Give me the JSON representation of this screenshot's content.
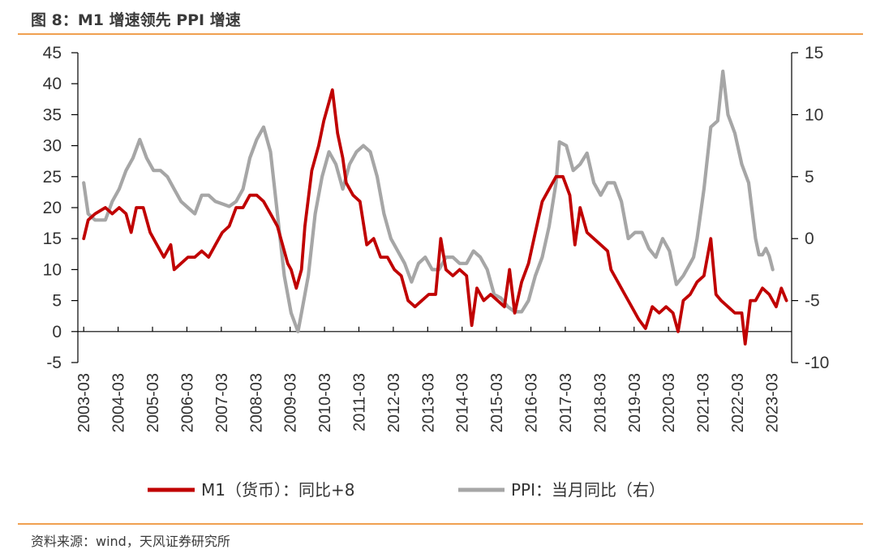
{
  "title": "图 8：M1 增速领先 PPI 增速",
  "source": "资料来源：wind，天风证券研究所",
  "colors": {
    "m1": "#c00000",
    "ppi": "#a6a6a6",
    "rule": "#f0a050",
    "axis": "#000000"
  },
  "chart_data": {
    "type": "line",
    "title": "M1 增速领先 PPI 增速",
    "x_tick_labels": [
      "2003-03",
      "2004-03",
      "2005-03",
      "2006-03",
      "2007-03",
      "2008-03",
      "2009-03",
      "2010-03",
      "2011-03",
      "2012-03",
      "2013-03",
      "2014-03",
      "2015-03",
      "2016-03",
      "2017-03",
      "2018-03",
      "2019-03",
      "2020-03",
      "2021-03",
      "2022-03",
      "2023-03"
    ],
    "y_left": {
      "min": -5,
      "max": 45,
      "ticks": [
        45,
        40,
        35,
        30,
        25,
        20,
        15,
        10,
        5,
        0,
        -5
      ]
    },
    "y_right": {
      "min": -10,
      "max": 15,
      "ticks": [
        15,
        10,
        5,
        0,
        -5,
        -10
      ]
    },
    "legend": [
      "M1（货币）：同比+8",
      "PPI：当月同比（右）"
    ],
    "legend_position": "bottom",
    "series": [
      {
        "name": "M1（货币）：同比+8",
        "axis": "left",
        "points": [
          [
            2003.17,
            15
          ],
          [
            2003.3,
            18
          ],
          [
            2003.5,
            19
          ],
          [
            2003.8,
            20
          ],
          [
            2004.0,
            19
          ],
          [
            2004.2,
            20
          ],
          [
            2004.4,
            19
          ],
          [
            2004.55,
            16
          ],
          [
            2004.7,
            20
          ],
          [
            2004.9,
            20
          ],
          [
            2005.1,
            16
          ],
          [
            2005.3,
            14
          ],
          [
            2005.5,
            12
          ],
          [
            2005.7,
            14
          ],
          [
            2005.8,
            10
          ],
          [
            2006.0,
            11
          ],
          [
            2006.2,
            12
          ],
          [
            2006.4,
            12
          ],
          [
            2006.6,
            13
          ],
          [
            2006.8,
            12
          ],
          [
            2007.0,
            14
          ],
          [
            2007.2,
            16
          ],
          [
            2007.4,
            17
          ],
          [
            2007.6,
            20
          ],
          [
            2007.8,
            20
          ],
          [
            2008.0,
            22
          ],
          [
            2008.2,
            22
          ],
          [
            2008.4,
            21
          ],
          [
            2008.6,
            19
          ],
          [
            2008.8,
            17
          ],
          [
            2009.0,
            13
          ],
          [
            2009.1,
            11
          ],
          [
            2009.2,
            10
          ],
          [
            2009.35,
            7
          ],
          [
            2009.5,
            10
          ],
          [
            2009.6,
            17
          ],
          [
            2009.8,
            26
          ],
          [
            2010.0,
            30
          ],
          [
            2010.15,
            34
          ],
          [
            2010.3,
            37
          ],
          [
            2010.4,
            39
          ],
          [
            2010.55,
            32
          ],
          [
            2010.7,
            28
          ],
          [
            2010.8,
            24
          ],
          [
            2011.0,
            22
          ],
          [
            2011.2,
            21
          ],
          [
            2011.4,
            14
          ],
          [
            2011.6,
            15
          ],
          [
            2011.8,
            12
          ],
          [
            2012.0,
            12
          ],
          [
            2012.2,
            10
          ],
          [
            2012.4,
            9
          ],
          [
            2012.6,
            5
          ],
          [
            2012.8,
            4
          ],
          [
            2013.0,
            5
          ],
          [
            2013.2,
            6
          ],
          [
            2013.4,
            6
          ],
          [
            2013.55,
            15
          ],
          [
            2013.7,
            10
          ],
          [
            2013.9,
            9
          ],
          [
            2014.1,
            10
          ],
          [
            2014.3,
            9
          ],
          [
            2014.45,
            1
          ],
          [
            2014.6,
            7
          ],
          [
            2014.8,
            5
          ],
          [
            2015.0,
            6
          ],
          [
            2015.2,
            5
          ],
          [
            2015.4,
            4
          ],
          [
            2015.55,
            10
          ],
          [
            2015.7,
            3
          ],
          [
            2015.9,
            8
          ],
          [
            2016.1,
            11
          ],
          [
            2016.3,
            16
          ],
          [
            2016.5,
            21
          ],
          [
            2016.7,
            23
          ],
          [
            2016.9,
            25
          ],
          [
            2017.1,
            25
          ],
          [
            2017.3,
            22
          ],
          [
            2017.45,
            14
          ],
          [
            2017.6,
            20
          ],
          [
            2017.8,
            16
          ],
          [
            2018.0,
            15
          ],
          [
            2018.2,
            14
          ],
          [
            2018.4,
            13
          ],
          [
            2018.5,
            10
          ],
          [
            2018.7,
            8
          ],
          [
            2018.9,
            6
          ],
          [
            2019.1,
            4
          ],
          [
            2019.3,
            2
          ],
          [
            2019.5,
            0.5
          ],
          [
            2019.7,
            4
          ],
          [
            2019.9,
            3
          ],
          [
            2020.1,
            4
          ],
          [
            2020.3,
            3
          ],
          [
            2020.45,
            0
          ],
          [
            2020.6,
            5
          ],
          [
            2020.8,
            6
          ],
          [
            2021.0,
            8
          ],
          [
            2021.2,
            9
          ],
          [
            2021.4,
            15
          ],
          [
            2021.55,
            6
          ],
          [
            2021.7,
            5
          ],
          [
            2021.9,
            4
          ],
          [
            2022.1,
            3
          ],
          [
            2022.3,
            3
          ],
          [
            2022.4,
            -2
          ],
          [
            2022.55,
            5
          ],
          [
            2022.7,
            5
          ],
          [
            2022.9,
            7
          ],
          [
            2023.1,
            6
          ],
          [
            2023.3,
            4
          ],
          [
            2023.45,
            7
          ],
          [
            2023.6,
            5
          ]
        ]
      },
      {
        "name": "PPI：当月同比（右）",
        "axis": "right",
        "points": [
          [
            2003.17,
            4.5
          ],
          [
            2003.3,
            2
          ],
          [
            2003.5,
            1.5
          ],
          [
            2003.8,
            1.5
          ],
          [
            2004.0,
            3
          ],
          [
            2004.2,
            4
          ],
          [
            2004.4,
            5.5
          ],
          [
            2004.6,
            6.5
          ],
          [
            2004.8,
            8
          ],
          [
            2005.0,
            6.5
          ],
          [
            2005.2,
            5.5
          ],
          [
            2005.4,
            5.5
          ],
          [
            2005.6,
            5
          ],
          [
            2005.8,
            4
          ],
          [
            2006.0,
            3
          ],
          [
            2006.2,
            2.5
          ],
          [
            2006.4,
            2
          ],
          [
            2006.6,
            3.5
          ],
          [
            2006.8,
            3.5
          ],
          [
            2007.0,
            3
          ],
          [
            2007.2,
            2.8
          ],
          [
            2007.4,
            2.6
          ],
          [
            2007.6,
            3
          ],
          [
            2007.8,
            4
          ],
          [
            2008.0,
            6.5
          ],
          [
            2008.2,
            8
          ],
          [
            2008.4,
            9
          ],
          [
            2008.6,
            7
          ],
          [
            2008.8,
            2
          ],
          [
            2009.0,
            -3
          ],
          [
            2009.2,
            -6
          ],
          [
            2009.4,
            -7.5
          ],
          [
            2009.5,
            -6
          ],
          [
            2009.7,
            -3
          ],
          [
            2009.9,
            2
          ],
          [
            2010.1,
            5
          ],
          [
            2010.3,
            7
          ],
          [
            2010.5,
            6
          ],
          [
            2010.7,
            4
          ],
          [
            2010.9,
            6
          ],
          [
            2011.1,
            7
          ],
          [
            2011.3,
            7.5
          ],
          [
            2011.5,
            7
          ],
          [
            2011.7,
            5
          ],
          [
            2011.9,
            2
          ],
          [
            2012.1,
            0
          ],
          [
            2012.3,
            -1
          ],
          [
            2012.5,
            -2
          ],
          [
            2012.7,
            -3.5
          ],
          [
            2012.9,
            -2
          ],
          [
            2013.1,
            -1.5
          ],
          [
            2013.3,
            -2.5
          ],
          [
            2013.5,
            -2.5
          ],
          [
            2013.7,
            -1.5
          ],
          [
            2013.9,
            -1.5
          ],
          [
            2014.1,
            -2
          ],
          [
            2014.3,
            -2
          ],
          [
            2014.5,
            -1
          ],
          [
            2014.7,
            -1.5
          ],
          [
            2014.9,
            -2.5
          ],
          [
            2015.1,
            -4.5
          ],
          [
            2015.3,
            -4.8
          ],
          [
            2015.5,
            -5.5
          ],
          [
            2015.7,
            -5.9
          ],
          [
            2015.9,
            -5.9
          ],
          [
            2016.1,
            -5
          ],
          [
            2016.3,
            -3
          ],
          [
            2016.5,
            -1.5
          ],
          [
            2016.7,
            1
          ],
          [
            2016.9,
            4.5
          ],
          [
            2017.0,
            7.8
          ],
          [
            2017.2,
            7.5
          ],
          [
            2017.4,
            5.5
          ],
          [
            2017.6,
            6
          ],
          [
            2017.8,
            6.9
          ],
          [
            2018.0,
            4.5
          ],
          [
            2018.2,
            3.5
          ],
          [
            2018.4,
            4.5
          ],
          [
            2018.6,
            4.5
          ],
          [
            2018.8,
            3
          ],
          [
            2019.0,
            0
          ],
          [
            2019.2,
            0.5
          ],
          [
            2019.4,
            0.5
          ],
          [
            2019.6,
            -0.8
          ],
          [
            2019.8,
            -1.5
          ],
          [
            2020.0,
            0
          ],
          [
            2020.2,
            -1
          ],
          [
            2020.4,
            -3.7
          ],
          [
            2020.6,
            -3
          ],
          [
            2020.8,
            -2
          ],
          [
            2020.9,
            -1.5
          ],
          [
            2021.0,
            0
          ],
          [
            2021.2,
            4
          ],
          [
            2021.4,
            9
          ],
          [
            2021.6,
            9.5
          ],
          [
            2021.75,
            13.5
          ],
          [
            2021.9,
            10
          ],
          [
            2022.1,
            8.5
          ],
          [
            2022.3,
            6
          ],
          [
            2022.5,
            4.5
          ],
          [
            2022.7,
            0
          ],
          [
            2022.8,
            -1.3
          ],
          [
            2022.9,
            -1.3
          ],
          [
            2023.0,
            -0.8
          ],
          [
            2023.1,
            -1.4
          ],
          [
            2023.2,
            -2.5
          ]
        ]
      }
    ]
  }
}
